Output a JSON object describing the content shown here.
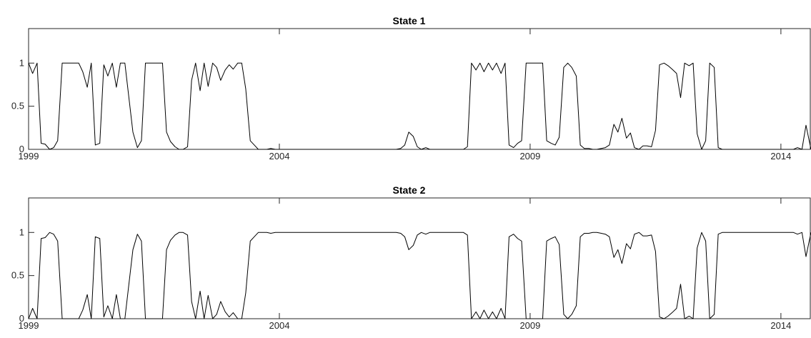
{
  "chart_data": [
    {
      "type": "line",
      "title": "State 1",
      "xlim": [
        1999,
        2014.6
      ],
      "ylim": [
        0,
        1.4
      ],
      "xticks": [
        1999,
        2004,
        2009,
        2014
      ],
      "xtick_labels": [
        "1999",
        "2004",
        "2009",
        "2014"
      ],
      "yticks": [
        0,
        0.5,
        1
      ],
      "ytick_labels": [
        "0",
        "0.5",
        "1"
      ],
      "grid": false,
      "series": [
        {
          "x": [
            1999.0,
            1999.08,
            1999.17,
            1999.25,
            1999.33,
            1999.42,
            1999.5,
            1999.58,
            1999.67,
            1999.75,
            1999.83,
            1999.92,
            2000.0,
            2000.08,
            2000.17,
            2000.25,
            2000.33,
            2000.42,
            2000.5,
            2000.58,
            2000.67,
            2000.75,
            2000.83,
            2000.92,
            2001.0,
            2001.08,
            2001.17,
            2001.25,
            2001.33,
            2001.42,
            2001.5,
            2001.58,
            2001.67,
            2001.75,
            2001.83,
            2001.92,
            2002.0,
            2002.08,
            2002.17,
            2002.25,
            2002.33,
            2002.42,
            2002.5,
            2002.58,
            2002.67,
            2002.75,
            2002.83,
            2002.92,
            2003.0,
            2003.08,
            2003.17,
            2003.25,
            2003.33,
            2003.42,
            2003.5,
            2003.58,
            2003.67,
            2003.75,
            2003.83,
            2003.92,
            2004.0,
            2004.5,
            2005.0,
            2005.5,
            2006.0,
            2006.17,
            2006.33,
            2006.42,
            2006.5,
            2006.58,
            2006.67,
            2006.75,
            2006.83,
            2006.92,
            2007.0,
            2007.25,
            2007.5,
            2007.67,
            2007.75,
            2007.83,
            2007.92,
            2008.0,
            2008.08,
            2008.17,
            2008.25,
            2008.33,
            2008.42,
            2008.5,
            2008.58,
            2008.67,
            2008.75,
            2008.83,
            2008.92,
            2009.0,
            2009.08,
            2009.17,
            2009.25,
            2009.33,
            2009.42,
            2009.5,
            2009.58,
            2009.67,
            2009.75,
            2009.83,
            2009.92,
            2010.0,
            2010.08,
            2010.17,
            2010.25,
            2010.33,
            2010.42,
            2010.5,
            2010.58,
            2010.67,
            2010.75,
            2010.83,
            2010.92,
            2011.0,
            2011.08,
            2011.17,
            2011.25,
            2011.33,
            2011.42,
            2011.5,
            2011.58,
            2011.67,
            2011.75,
            2011.83,
            2011.92,
            2012.0,
            2012.08,
            2012.17,
            2012.25,
            2012.33,
            2012.42,
            2012.5,
            2012.58,
            2012.67,
            2012.75,
            2012.83,
            2013.0,
            2013.5,
            2014.0,
            2014.25,
            2014.33,
            2014.42,
            2014.5,
            2014.6
          ],
          "y": [
            1.0,
            0.88,
            1.0,
            0.07,
            0.06,
            0.0,
            0.02,
            0.1,
            1.0,
            1.0,
            1.0,
            1.0,
            1.0,
            0.9,
            0.72,
            1.0,
            0.05,
            0.07,
            0.98,
            0.85,
            1.0,
            0.72,
            1.0,
            1.0,
            0.6,
            0.2,
            0.02,
            0.1,
            1.0,
            1.0,
            1.0,
            1.0,
            1.0,
            0.2,
            0.09,
            0.03,
            0.0,
            0.0,
            0.03,
            0.8,
            1.0,
            0.68,
            1.0,
            0.73,
            1.0,
            0.95,
            0.8,
            0.92,
            0.98,
            0.93,
            1.0,
            1.0,
            0.7,
            0.1,
            0.05,
            0.0,
            0.0,
            0.0,
            0.01,
            0.0,
            0.0,
            0.0,
            0.0,
            0.0,
            0.0,
            0.0,
            0.0,
            0.01,
            0.05,
            0.2,
            0.15,
            0.03,
            0.0,
            0.02,
            0.0,
            0.0,
            0.0,
            0.0,
            0.03,
            1.0,
            0.92,
            1.0,
            0.9,
            1.0,
            0.92,
            1.0,
            0.88,
            1.0,
            0.05,
            0.02,
            0.07,
            0.1,
            1.0,
            1.0,
            1.0,
            1.0,
            1.0,
            0.1,
            0.07,
            0.05,
            0.14,
            0.95,
            1.0,
            0.95,
            0.85,
            0.05,
            0.01,
            0.01,
            0.0,
            0.0,
            0.01,
            0.02,
            0.05,
            0.29,
            0.2,
            0.36,
            0.13,
            0.19,
            0.02,
            0.0,
            0.04,
            0.04,
            0.03,
            0.22,
            0.98,
            1.0,
            0.97,
            0.93,
            0.88,
            0.6,
            1.0,
            0.97,
            1.0,
            0.18,
            0.0,
            0.1,
            1.0,
            0.95,
            0.02,
            0.0,
            0.0,
            0.0,
            0.0,
            0.0,
            0.02,
            0.0,
            0.28,
            0.0
          ]
        }
      ]
    },
    {
      "type": "line",
      "title": "State 2",
      "xlim": [
        1999,
        2014.6
      ],
      "ylim": [
        0,
        1.4
      ],
      "xticks": [
        1999,
        2004,
        2009,
        2014
      ],
      "xtick_labels": [
        "1999",
        "2004",
        "2009",
        "2014"
      ],
      "yticks": [
        0,
        0.5,
        1
      ],
      "ytick_labels": [
        "0",
        "0.5",
        "1"
      ],
      "grid": false,
      "series": [
        {
          "x": [
            1999.0,
            1999.08,
            1999.17,
            1999.25,
            1999.33,
            1999.42,
            1999.5,
            1999.58,
            1999.67,
            1999.75,
            1999.83,
            1999.92,
            2000.0,
            2000.08,
            2000.17,
            2000.25,
            2000.33,
            2000.42,
            2000.5,
            2000.58,
            2000.67,
            2000.75,
            2000.83,
            2000.92,
            2001.0,
            2001.08,
            2001.17,
            2001.25,
            2001.33,
            2001.42,
            2001.5,
            2001.58,
            2001.67,
            2001.75,
            2001.83,
            2001.92,
            2002.0,
            2002.08,
            2002.17,
            2002.25,
            2002.33,
            2002.42,
            2002.5,
            2002.58,
            2002.67,
            2002.75,
            2002.83,
            2002.92,
            2003.0,
            2003.08,
            2003.17,
            2003.25,
            2003.33,
            2003.42,
            2003.5,
            2003.58,
            2003.67,
            2003.75,
            2003.83,
            2003.92,
            2004.0,
            2004.5,
            2005.0,
            2005.5,
            2006.0,
            2006.17,
            2006.33,
            2006.42,
            2006.5,
            2006.58,
            2006.67,
            2006.75,
            2006.83,
            2006.92,
            2007.0,
            2007.25,
            2007.5,
            2007.67,
            2007.75,
            2007.83,
            2007.92,
            2008.0,
            2008.08,
            2008.17,
            2008.25,
            2008.33,
            2008.42,
            2008.5,
            2008.58,
            2008.67,
            2008.75,
            2008.83,
            2008.92,
            2009.0,
            2009.08,
            2009.17,
            2009.25,
            2009.33,
            2009.42,
            2009.5,
            2009.58,
            2009.67,
            2009.75,
            2009.83,
            2009.92,
            2010.0,
            2010.08,
            2010.17,
            2010.25,
            2010.33,
            2010.42,
            2010.5,
            2010.58,
            2010.67,
            2010.75,
            2010.83,
            2010.92,
            2011.0,
            2011.08,
            2011.17,
            2011.25,
            2011.33,
            2011.42,
            2011.5,
            2011.58,
            2011.67,
            2011.75,
            2011.83,
            2011.92,
            2012.0,
            2012.08,
            2012.17,
            2012.25,
            2012.33,
            2012.42,
            2012.5,
            2012.58,
            2012.67,
            2012.75,
            2012.83,
            2013.0,
            2013.5,
            2014.0,
            2014.25,
            2014.33,
            2014.42,
            2014.5,
            2014.6
          ],
          "y": [
            0.0,
            0.12,
            0.0,
            0.93,
            0.94,
            1.0,
            0.98,
            0.9,
            0.0,
            0.0,
            0.0,
            0.0,
            0.0,
            0.1,
            0.28,
            0.0,
            0.95,
            0.93,
            0.02,
            0.15,
            0.0,
            0.28,
            0.0,
            0.0,
            0.4,
            0.8,
            0.98,
            0.9,
            0.0,
            0.0,
            0.0,
            0.0,
            0.0,
            0.8,
            0.91,
            0.97,
            1.0,
            1.0,
            0.97,
            0.2,
            0.0,
            0.32,
            0.0,
            0.27,
            0.0,
            0.05,
            0.2,
            0.08,
            0.02,
            0.07,
            0.0,
            0.0,
            0.3,
            0.9,
            0.95,
            1.0,
            1.0,
            1.0,
            0.99,
            1.0,
            1.0,
            1.0,
            1.0,
            1.0,
            1.0,
            1.0,
            1.0,
            0.99,
            0.95,
            0.8,
            0.85,
            0.97,
            1.0,
            0.98,
            1.0,
            1.0,
            1.0,
            1.0,
            0.97,
            0.0,
            0.08,
            0.0,
            0.1,
            0.0,
            0.08,
            0.0,
            0.12,
            0.0,
            0.95,
            0.98,
            0.93,
            0.9,
            0.0,
            0.0,
            0.0,
            0.0,
            0.0,
            0.9,
            0.93,
            0.95,
            0.86,
            0.05,
            0.0,
            0.05,
            0.15,
            0.95,
            0.99,
            0.99,
            1.0,
            1.0,
            0.99,
            0.98,
            0.95,
            0.71,
            0.8,
            0.64,
            0.87,
            0.81,
            0.98,
            1.0,
            0.96,
            0.96,
            0.97,
            0.78,
            0.02,
            0.0,
            0.03,
            0.07,
            0.12,
            0.4,
            0.0,
            0.03,
            0.0,
            0.82,
            1.0,
            0.9,
            0.0,
            0.05,
            0.98,
            1.0,
            1.0,
            1.0,
            1.0,
            1.0,
            0.98,
            1.0,
            0.72,
            1.0
          ]
        }
      ]
    }
  ]
}
